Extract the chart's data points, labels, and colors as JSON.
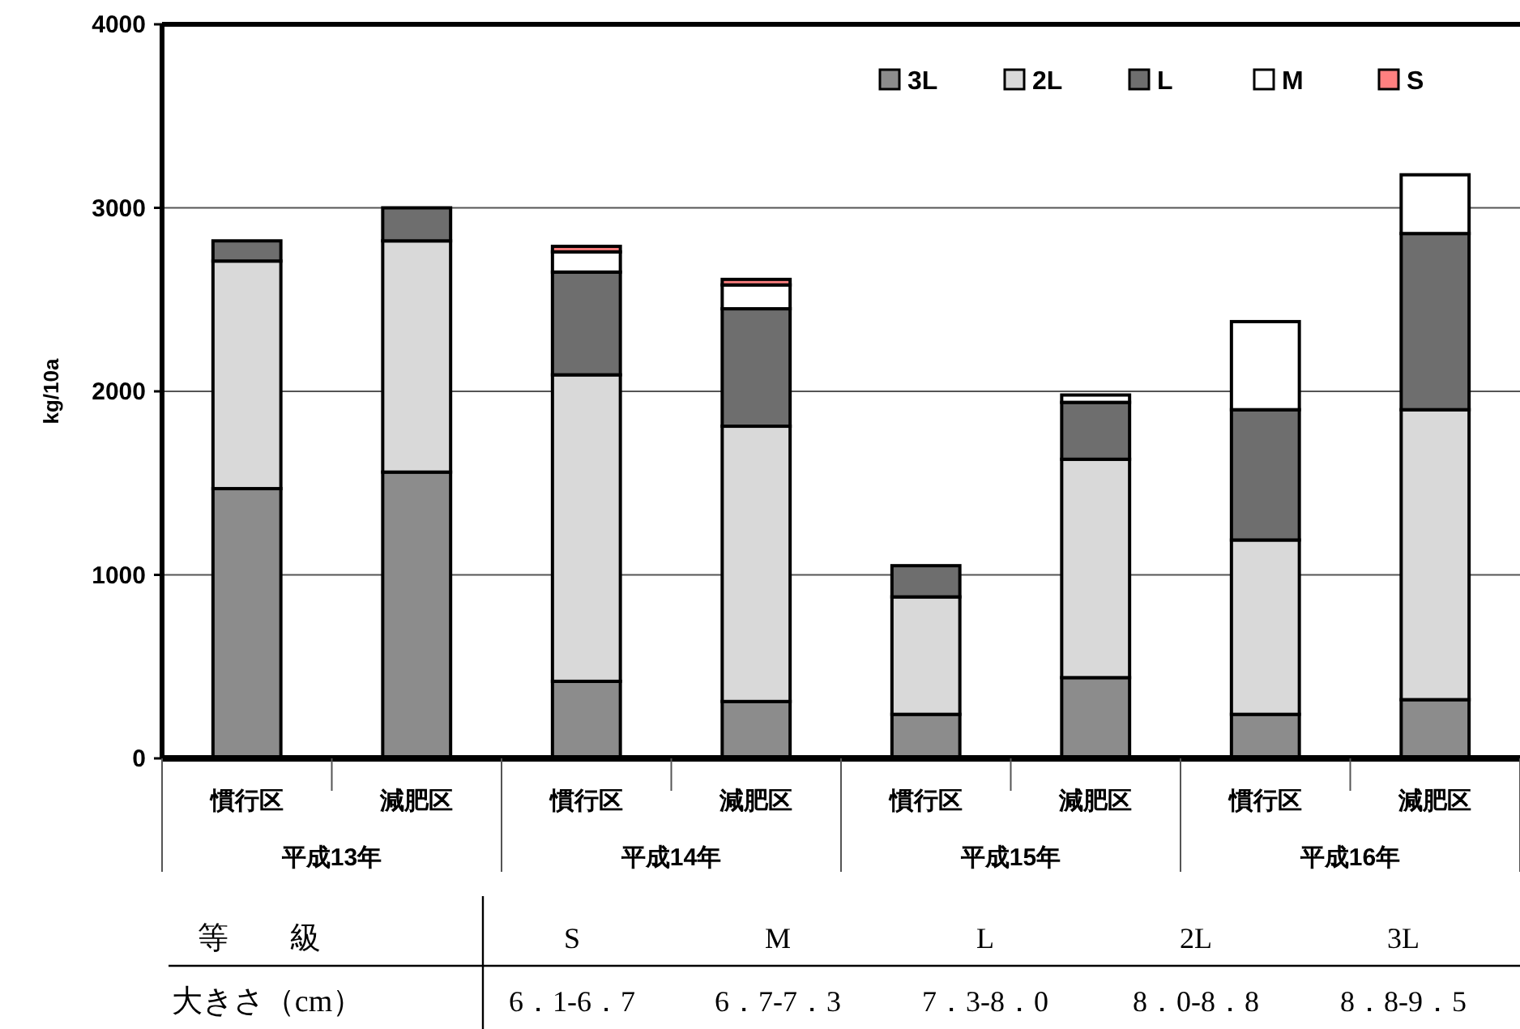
{
  "chart_data": {
    "type": "bar",
    "stacked": true,
    "ylabel": "kg/10a",
    "categories": [
      "慣行区",
      "減肥区",
      "慣行区",
      "減肥区",
      "慣行区",
      "減肥区",
      "慣行区",
      "減肥区"
    ],
    "ylim": [
      0,
      4000
    ],
    "yticks": [
      0,
      1000,
      2000,
      3000,
      4000
    ],
    "grid": "y",
    "legend": "top right",
    "series": [
      {
        "name": "3L",
        "color": "#8c8c8c",
        "values": [
          1470,
          1560,
          420,
          310,
          240,
          440,
          240,
          320
        ]
      },
      {
        "name": "2L",
        "color": "#d9d9d9",
        "values": [
          1240,
          1260,
          1670,
          1500,
          640,
          1190,
          950,
          1580
        ]
      },
      {
        "name": "L",
        "color": "#6e6e6e",
        "values": [
          110,
          180,
          560,
          640,
          170,
          310,
          710,
          960
        ]
      },
      {
        "name": "M",
        "color": "#ffffff",
        "values": [
          null,
          null,
          110,
          130,
          null,
          40,
          480,
          320
        ]
      },
      {
        "name": "S",
        "color": "#ff8080",
        "values": [
          null,
          null,
          30,
          30,
          null,
          null,
          null,
          null
        ]
      }
    ],
    "annotations": [
      "平成13年",
      "平成14年",
      "平成15年",
      "平成16年",
      "等　　級",
      "大きさ（cm）",
      "S",
      "M",
      "L",
      "2L",
      "3L",
      "6．1-6．7",
      "6．7-7．3",
      "7．3-8．0",
      "8．0-8．8",
      "8．8-9．5"
    ]
  }
}
